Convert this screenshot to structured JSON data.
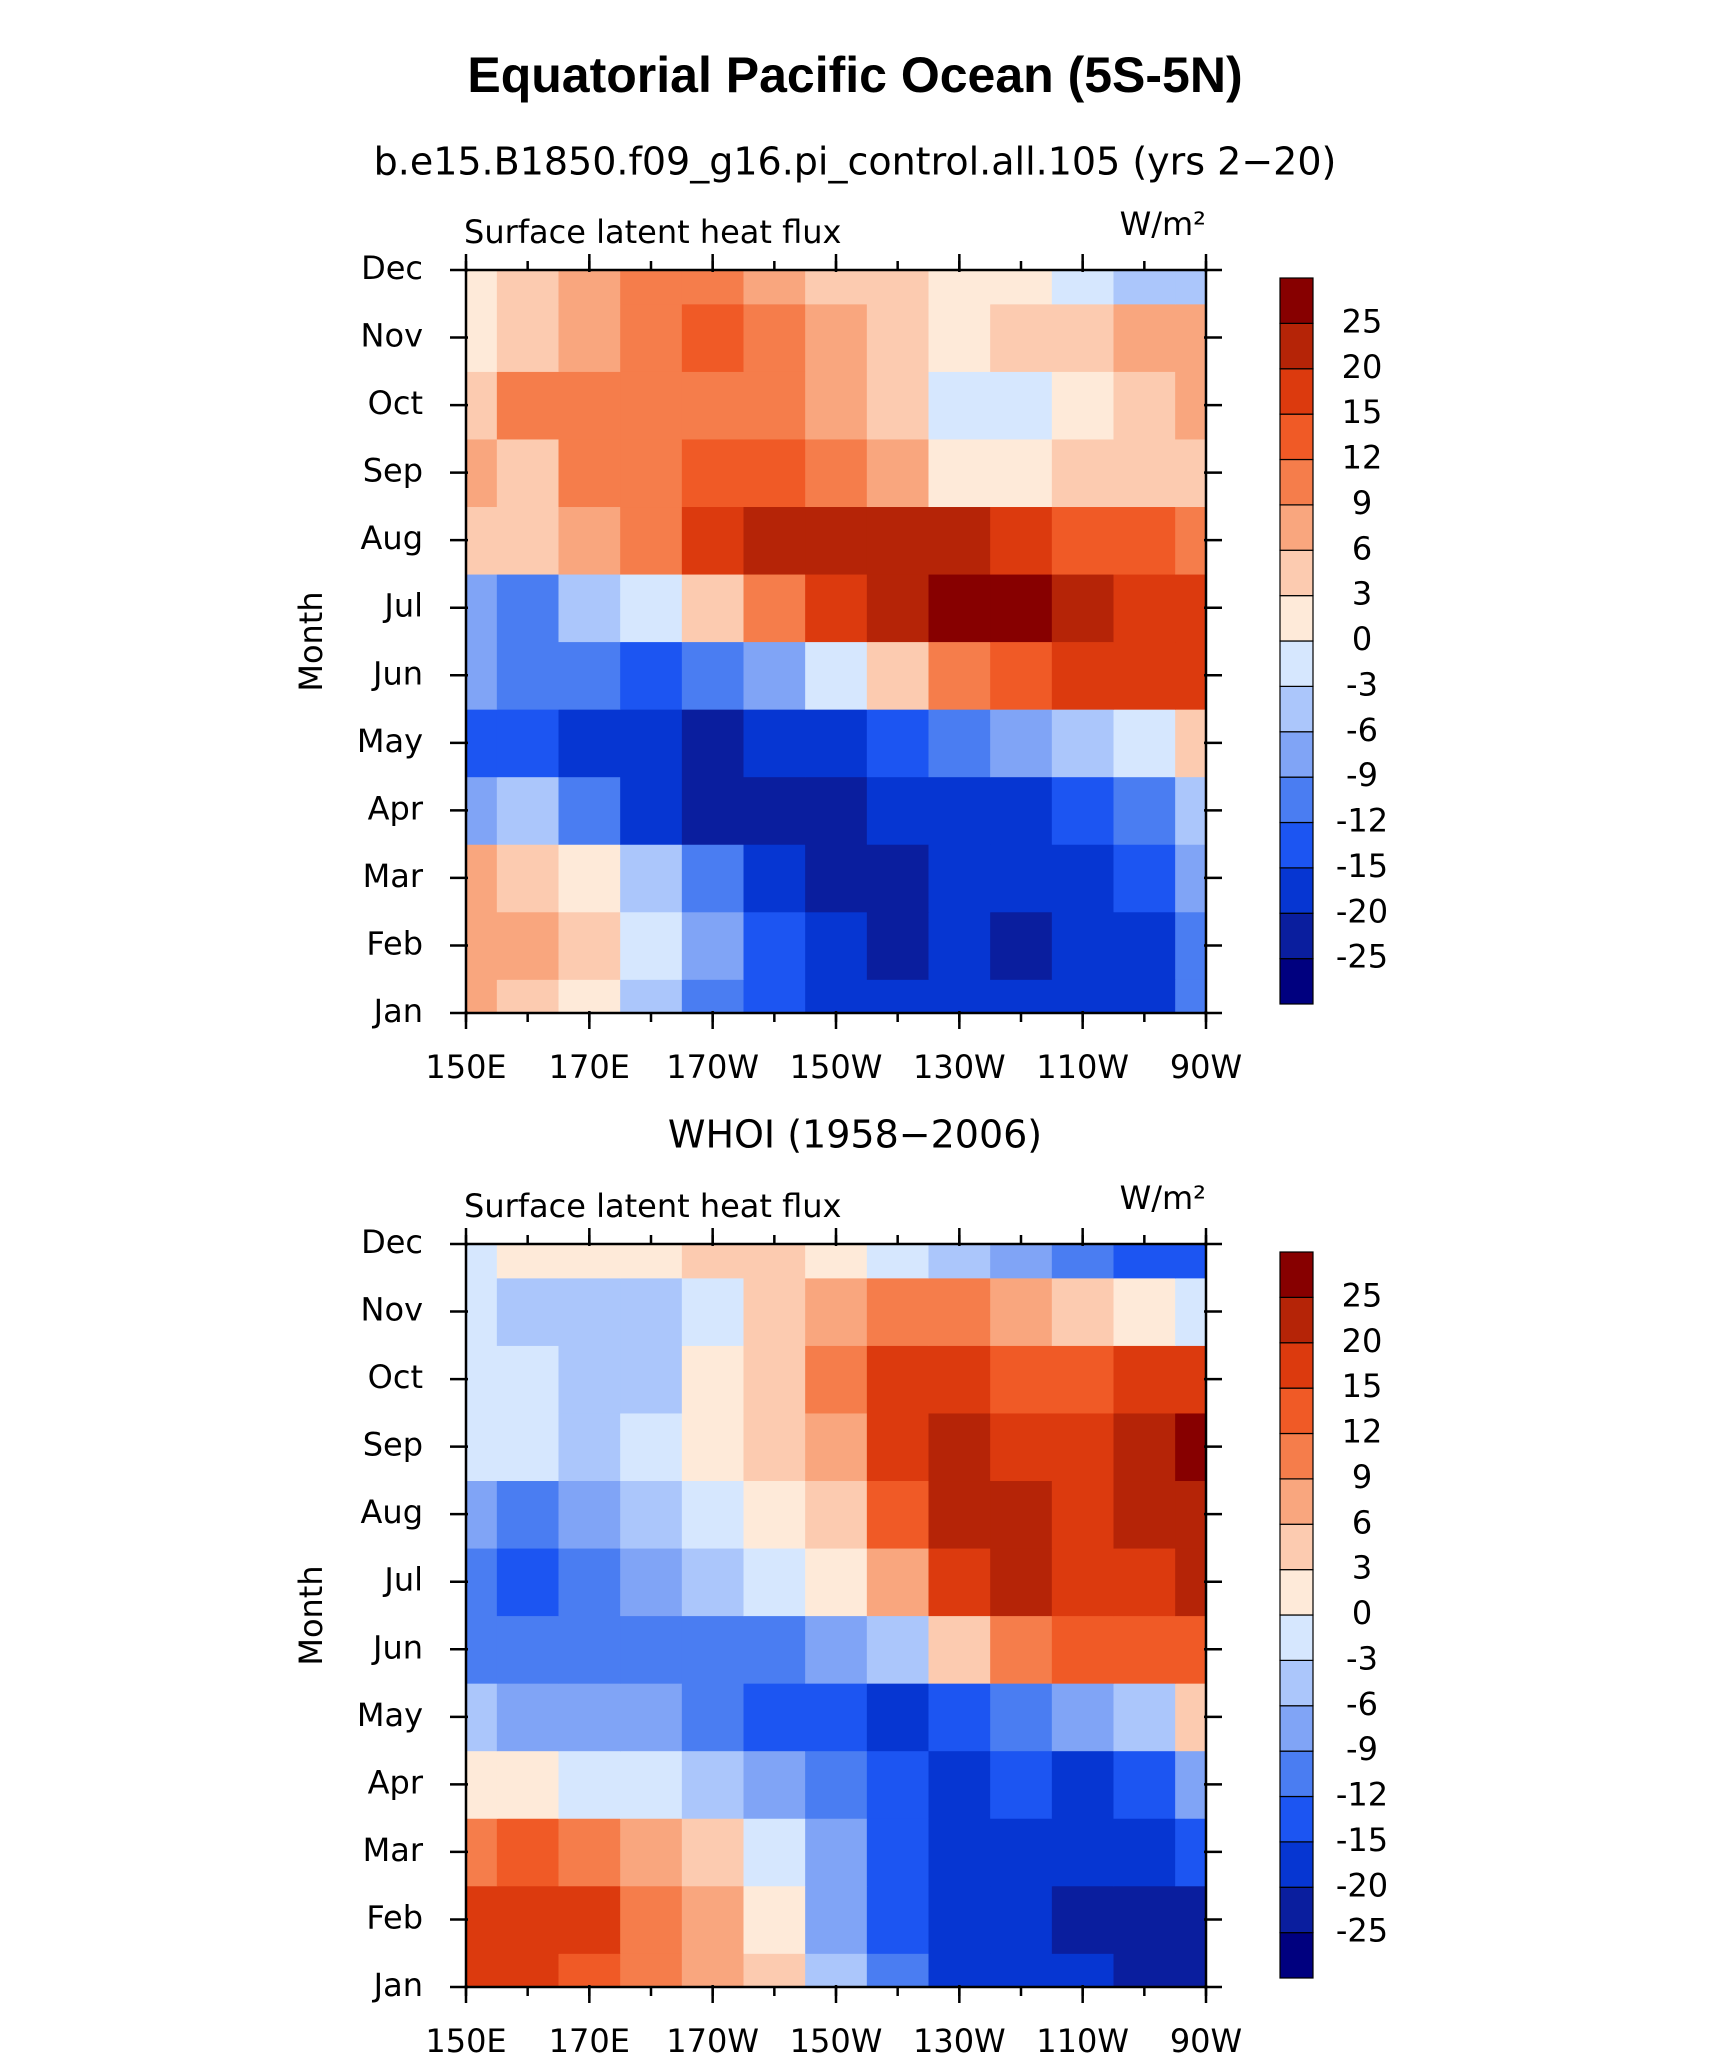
{
  "title": "Equatorial Pacific Ocean (5S-5N)",
  "chart_data": [
    {
      "type": "heatmap",
      "title": "b.e15.B1850.f09_g16.pi_control.all.105 (yrs 2−20)",
      "subtitle": "Surface latent heat flux",
      "units": "W/m²",
      "ylabel": "Month",
      "x": [
        150,
        160,
        170,
        180,
        190,
        200,
        210,
        220,
        230,
        240,
        250,
        260,
        270
      ],
      "xlim": [
        150,
        270
      ],
      "xticks": [
        {
          "value": 150,
          "label": "150E"
        },
        {
          "value": 170,
          "label": "170E"
        },
        {
          "value": 190,
          "label": "170W"
        },
        {
          "value": 210,
          "label": "150W"
        },
        {
          "value": 230,
          "label": "130W"
        },
        {
          "value": 250,
          "label": "110W"
        },
        {
          "value": 270,
          "label": "90W"
        }
      ],
      "categories": [
        "Jan",
        "Feb",
        "Mar",
        "Apr",
        "May",
        "Jun",
        "Jul",
        "Aug",
        "Sep",
        "Oct",
        "Nov",
        "Dec"
      ],
      "z": [
        [
          6,
          3,
          0,
          -6,
          -12,
          -15,
          -20,
          -20,
          -20,
          -20,
          -20,
          -20,
          -12
        ],
        [
          6,
          6,
          3,
          -3,
          -9,
          -15,
          -20,
          -25,
          -20,
          -25,
          -20,
          -20,
          -12
        ],
        [
          6,
          3,
          0,
          -6,
          -12,
          -20,
          -25,
          -25,
          -20,
          -20,
          -20,
          -15,
          -9
        ],
        [
          -9,
          -6,
          -12,
          -20,
          -25,
          -25,
          -25,
          -20,
          -20,
          -20,
          -15,
          -12,
          -6
        ],
        [
          -15,
          -15,
          -20,
          -20,
          -25,
          -20,
          -20,
          -15,
          -12,
          -9,
          -6,
          -3,
          3
        ],
        [
          -9,
          -12,
          -12,
          -15,
          -12,
          -9,
          -3,
          3,
          9,
          12,
          15,
          15,
          15
        ],
        [
          -9,
          -12,
          -6,
          -3,
          3,
          9,
          15,
          20,
          25,
          25,
          20,
          15,
          15
        ],
        [
          3,
          3,
          6,
          9,
          15,
          20,
          20,
          20,
          20,
          15,
          12,
          12,
          9
        ],
        [
          6,
          3,
          9,
          9,
          12,
          12,
          9,
          6,
          0,
          0,
          3,
          3,
          3
        ],
        [
          3,
          9,
          9,
          9,
          9,
          9,
          6,
          3,
          -3,
          -3,
          0,
          3,
          6
        ],
        [
          0,
          3,
          6,
          9,
          12,
          9,
          6,
          3,
          0,
          3,
          3,
          6,
          6
        ],
        [
          0,
          3,
          6,
          9,
          9,
          6,
          3,
          3,
          0,
          0,
          -3,
          -6,
          -6
        ]
      ],
      "levels": [
        -25,
        -20,
        -15,
        -12,
        -9,
        -6,
        -3,
        0,
        3,
        6,
        9,
        12,
        15,
        20,
        25
      ],
      "colors": [
        "#00007f",
        "#0a1e9e",
        "#0636d2",
        "#1c55f2",
        "#4a7df2",
        "#80a4f6",
        "#abc6fb",
        "#d6e7fe",
        "#feead9",
        "#fccbb0",
        "#f9a67e",
        "#f57d4b",
        "#f05a26",
        "#dc3a0e",
        "#b52407",
        "#870000"
      ]
    },
    {
      "type": "heatmap",
      "title": "WHOI (1958−2006)",
      "subtitle": "Surface latent heat flux",
      "units": "W/m²",
      "ylabel": "Month",
      "x": [
        150,
        160,
        170,
        180,
        190,
        200,
        210,
        220,
        230,
        240,
        250,
        260,
        270
      ],
      "xlim": [
        150,
        270
      ],
      "xticks": [
        {
          "value": 150,
          "label": "150E"
        },
        {
          "value": 170,
          "label": "170E"
        },
        {
          "value": 190,
          "label": "170W"
        },
        {
          "value": 210,
          "label": "150W"
        },
        {
          "value": 230,
          "label": "130W"
        },
        {
          "value": 250,
          "label": "110W"
        },
        {
          "value": 270,
          "label": "90W"
        }
      ],
      "categories": [
        "Jan",
        "Feb",
        "Mar",
        "Apr",
        "May",
        "Jun",
        "Jul",
        "Aug",
        "Sep",
        "Oct",
        "Nov",
        "Dec"
      ],
      "z": [
        [
          15,
          15,
          12,
          9,
          6,
          3,
          -6,
          -12,
          -20,
          -20,
          -20,
          -25,
          -25
        ],
        [
          15,
          15,
          15,
          9,
          6,
          0,
          -9,
          -15,
          -20,
          -20,
          -25,
          -25,
          -25
        ],
        [
          9,
          12,
          9,
          6,
          3,
          -3,
          -9,
          -15,
          -20,
          -20,
          -20,
          -20,
          -15
        ],
        [
          0,
          0,
          -3,
          -3,
          -6,
          -9,
          -12,
          -15,
          -20,
          -15,
          -20,
          -15,
          -9
        ],
        [
          -6,
          -9,
          -9,
          -9,
          -12,
          -15,
          -15,
          -20,
          -15,
          -12,
          -9,
          -6,
          3
        ],
        [
          -12,
          -12,
          -12,
          -12,
          -12,
          -12,
          -9,
          -6,
          3,
          9,
          12,
          12,
          12
        ],
        [
          -12,
          -15,
          -12,
          -9,
          -6,
          -3,
          0,
          6,
          15,
          20,
          15,
          15,
          20
        ],
        [
          -9,
          -12,
          -9,
          -6,
          -3,
          0,
          3,
          12,
          20,
          20,
          15,
          20,
          20
        ],
        [
          -3,
          -3,
          -6,
          -3,
          0,
          3,
          6,
          15,
          20,
          15,
          15,
          20,
          25
        ],
        [
          -3,
          -3,
          -6,
          -6,
          0,
          3,
          9,
          15,
          15,
          12,
          12,
          15,
          15
        ],
        [
          -3,
          -6,
          -6,
          -6,
          -3,
          3,
          6,
          9,
          9,
          6,
          3,
          0,
          -3
        ],
        [
          -3,
          0,
          0,
          0,
          3,
          3,
          0,
          -3,
          -6,
          -9,
          -12,
          -15,
          -15
        ]
      ],
      "levels": [
        -25,
        -20,
        -15,
        -12,
        -9,
        -6,
        -3,
        0,
        3,
        6,
        9,
        12,
        15,
        20,
        25
      ],
      "colors": [
        "#00007f",
        "#0a1e9e",
        "#0636d2",
        "#1c55f2",
        "#4a7df2",
        "#80a4f6",
        "#abc6fb",
        "#d6e7fe",
        "#feead9",
        "#fccbb0",
        "#f9a67e",
        "#f57d4b",
        "#f05a26",
        "#dc3a0e",
        "#b52407",
        "#870000"
      ]
    }
  ]
}
